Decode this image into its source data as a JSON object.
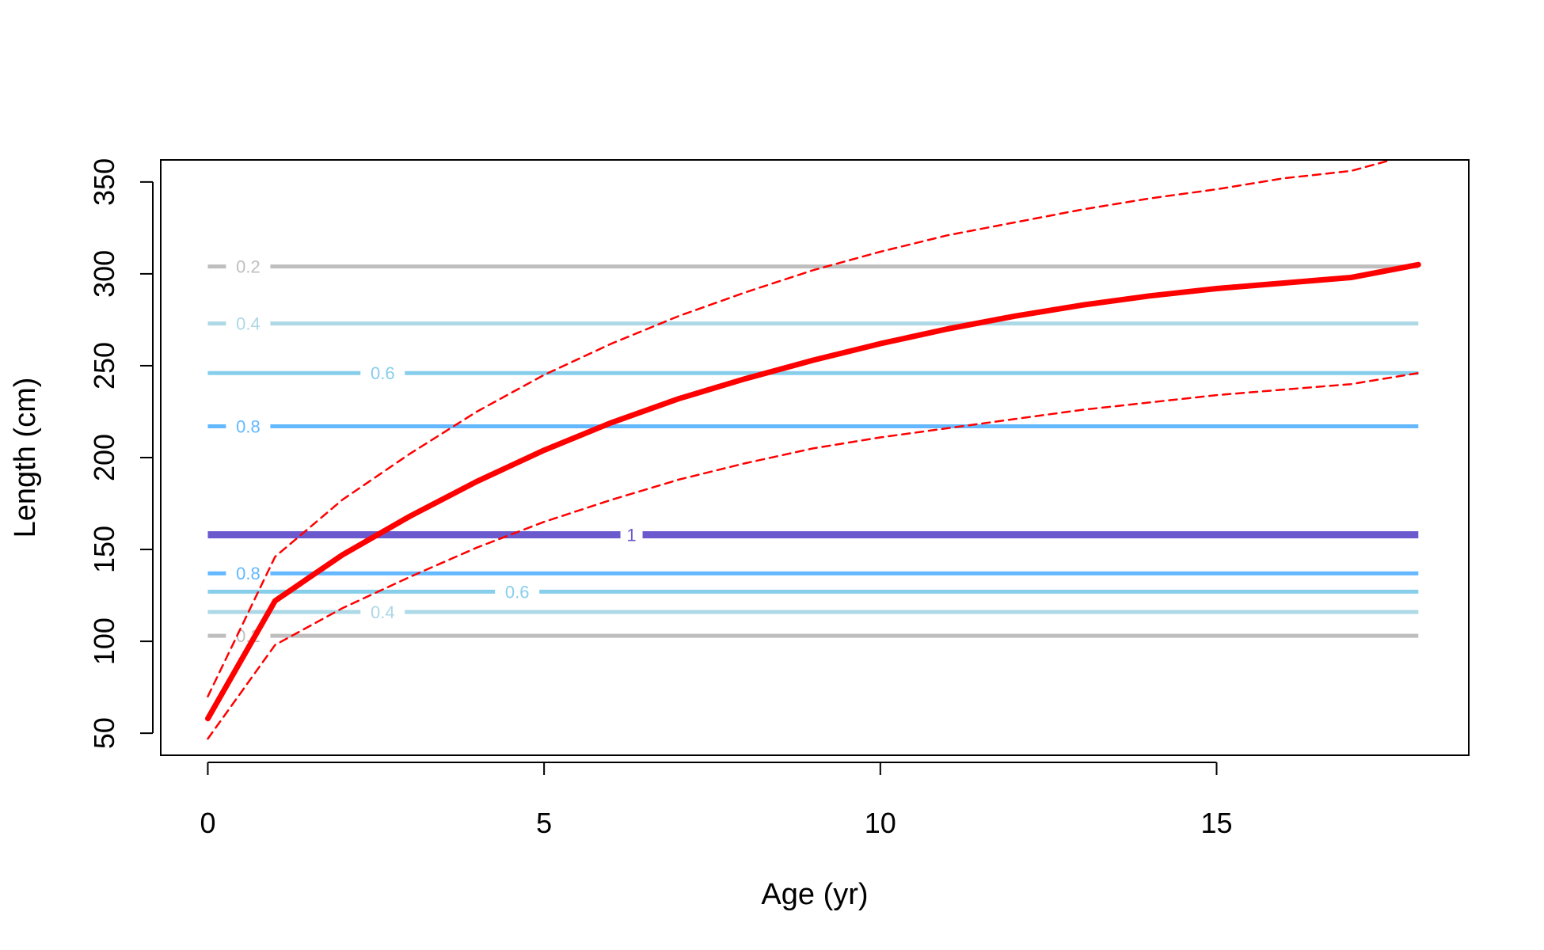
{
  "chart_data": {
    "type": "line",
    "title": "",
    "xlabel": "Age (yr)",
    "ylabel": "Length (cm)",
    "xlim": [
      -0.7,
      18.75
    ],
    "ylim": [
      38,
      362
    ],
    "xticks": [
      0,
      5,
      10,
      15
    ],
    "yticks": [
      50,
      100,
      150,
      200,
      250,
      300,
      350
    ],
    "grid": false,
    "legend": "none",
    "series": [
      {
        "role": "mean",
        "style": "solid",
        "color": "#ff0000",
        "x": [
          0,
          1,
          2,
          3,
          4,
          5,
          6,
          7,
          8,
          9,
          10,
          11,
          12,
          13,
          14,
          15,
          16,
          17,
          18
        ],
        "y": [
          58,
          122,
          147,
          168,
          187,
          204,
          219,
          232,
          243,
          253,
          262,
          270,
          277,
          283,
          288,
          292,
          295,
          298,
          305
        ]
      },
      {
        "role": "upper",
        "style": "dashed",
        "color": "#ff0000",
        "x": [
          0,
          1,
          2,
          3,
          4,
          5,
          6,
          7,
          8,
          9,
          10,
          11,
          12,
          13,
          14,
          15,
          16,
          17,
          18
        ],
        "y": [
          70,
          146,
          177,
          202,
          225,
          245,
          262,
          277,
          290,
          302,
          312,
          321,
          328,
          335,
          341,
          346,
          352,
          356,
          366
        ]
      },
      {
        "role": "lower",
        "style": "dashed",
        "color": "#ff0000",
        "x": [
          0,
          1,
          2,
          3,
          4,
          5,
          6,
          7,
          8,
          9,
          10,
          11,
          12,
          13,
          14,
          15,
          16,
          17,
          18
        ],
        "y": [
          47,
          98,
          118,
          135,
          151,
          165,
          177,
          188,
          197,
          205,
          211,
          216,
          221,
          226,
          230,
          234,
          237,
          240,
          246
        ]
      }
    ],
    "contours": [
      {
        "label": "0.2",
        "y": 304,
        "color": "#bebebe",
        "label_x": 0.6
      },
      {
        "label": "0.4",
        "y": 273,
        "color": "#add8e6",
        "label_x": 0.6
      },
      {
        "label": "0.6",
        "y": 246,
        "color": "#87ceeb",
        "label_x": 2.6
      },
      {
        "label": "0.8",
        "y": 217,
        "color": "#63b8ff",
        "label_x": 0.6
      },
      {
        "label": "1",
        "y": 158,
        "color": "#6a5acd",
        "label_x": 6.3
      },
      {
        "label": "0.8",
        "y": 137,
        "color": "#63b8ff",
        "label_x": 0.6
      },
      {
        "label": "0.6",
        "y": 127,
        "color": "#87ceeb",
        "label_x": 4.6
      },
      {
        "label": "0.4",
        "y": 116,
        "color": "#add8e6",
        "label_x": 2.6
      },
      {
        "label": "0.2",
        "y": 103,
        "color": "#bebebe",
        "label_x": 0.6
      }
    ]
  }
}
